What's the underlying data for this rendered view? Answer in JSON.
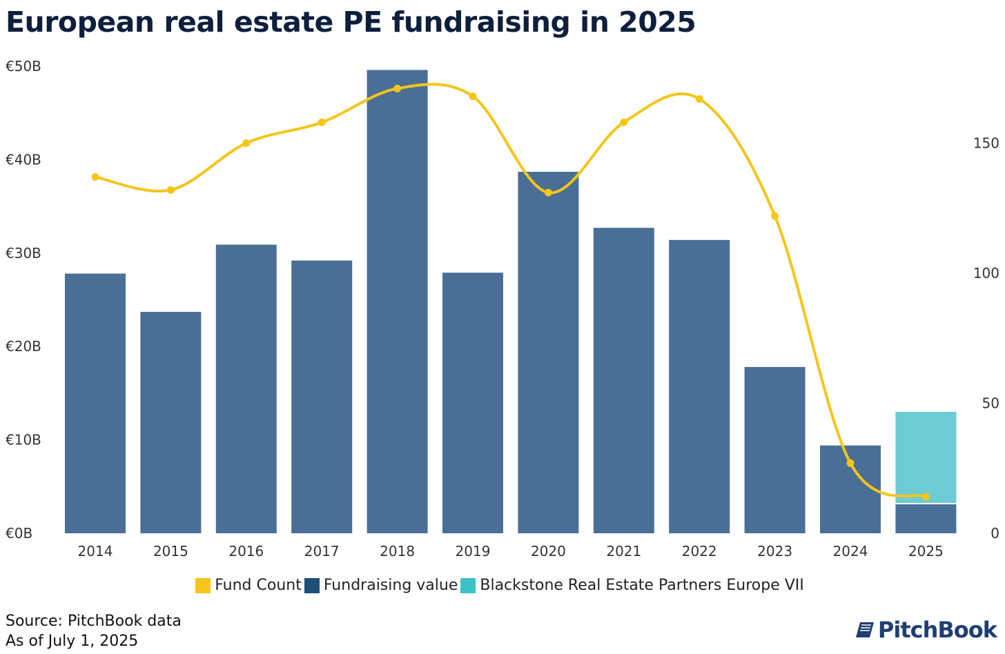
{
  "chart_data": {
    "type": "bar",
    "title": "European real estate PE fundraising in 2025",
    "categories": [
      "2014",
      "2015",
      "2016",
      "2017",
      "2018",
      "2019",
      "2020",
      "2021",
      "2022",
      "2023",
      "2024",
      "2025"
    ],
    "series": [
      {
        "name": "Fundraising value",
        "kind": "bar",
        "axis": "left",
        "color": "#4a6f96",
        "legend_color": "#1f4e79",
        "values": [
          27.8,
          23.7,
          30.9,
          29.2,
          49.6,
          27.9,
          38.7,
          32.7,
          31.4,
          17.8,
          9.4,
          3.1
        ]
      },
      {
        "name": "Blackstone Real Estate Partners Europe VII",
        "kind": "bar-stacked",
        "axis": "left",
        "color": "#6ccbd3",
        "legend_color": "#3cc3c8",
        "values": [
          0,
          0,
          0,
          0,
          0,
          0,
          0,
          0,
          0,
          0,
          0,
          9.9
        ]
      },
      {
        "name": "Fund Count",
        "kind": "line",
        "axis": "right",
        "color": "#f5c518",
        "legend_color": "#f5c518",
        "values": [
          137,
          132,
          150,
          158,
          171,
          168,
          131,
          158,
          167,
          122,
          27,
          14
        ]
      }
    ],
    "left_axis": {
      "ylim": [
        0,
        50
      ],
      "ticks": [
        0,
        10,
        20,
        30,
        40,
        50
      ],
      "tick_labels": [
        "€0B",
        "€10B",
        "€20B",
        "€30B",
        "€40B",
        "€50B"
      ]
    },
    "right_axis": {
      "ylim": [
        0,
        180
      ],
      "ticks": [
        0,
        50,
        100,
        150
      ],
      "tick_labels": [
        "0",
        "50",
        "100",
        "150"
      ]
    },
    "legend_placement": "bottom",
    "grid": false
  },
  "footer": {
    "source": "Source: PitchBook data",
    "as_of": "As of July 1, 2025",
    "logo": "PitchBook"
  }
}
